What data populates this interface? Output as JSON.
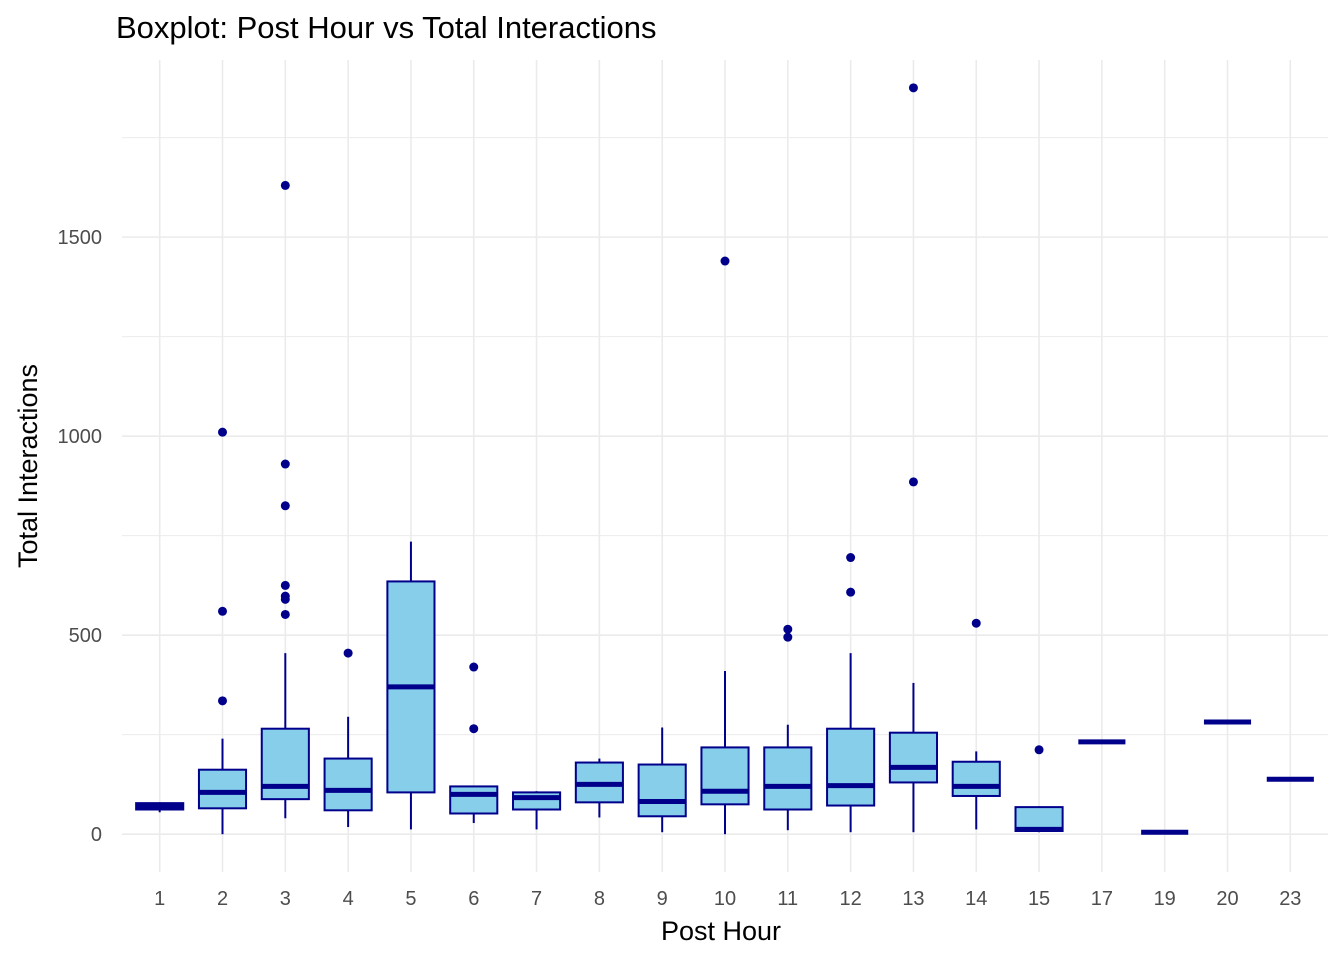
{
  "chart_data": {
    "type": "boxplot",
    "title": "Boxplot: Post Hour vs Total Interactions",
    "xlabel": "Post Hour",
    "ylabel": "Total Interactions",
    "ylim": [
      -95,
      1945
    ],
    "yticks": [
      0,
      500,
      1000,
      1500
    ],
    "grid": true,
    "colors": {
      "box_fill": "#87CEEB",
      "box_outline": "#00008B",
      "median": "#00008B",
      "outlier": "#00008B",
      "grid": "#EBEBEB"
    },
    "categories": [
      "1",
      "2",
      "3",
      "4",
      "5",
      "6",
      "7",
      "8",
      "9",
      "10",
      "11",
      "12",
      "13",
      "14",
      "15",
      "17",
      "19",
      "20",
      "23"
    ],
    "boxes": [
      {
        "category": "1",
        "whisker_low": 55,
        "q1": 62,
        "median": 70,
        "q3": 78,
        "whisker_high": 80,
        "outliers": []
      },
      {
        "category": "2",
        "whisker_low": 0,
        "q1": 65,
        "median": 105,
        "q3": 162,
        "whisker_high": 240,
        "outliers": [
          335,
          560,
          1010
        ]
      },
      {
        "category": "3",
        "whisker_low": 40,
        "q1": 88,
        "median": 120,
        "q3": 265,
        "whisker_high": 455,
        "outliers": [
          552,
          590,
          598,
          625,
          825,
          930,
          1630
        ]
      },
      {
        "category": "4",
        "whisker_low": 18,
        "q1": 60,
        "median": 110,
        "q3": 190,
        "whisker_high": 295,
        "outliers": [
          455
        ]
      },
      {
        "category": "5",
        "whisker_low": 12,
        "q1": 105,
        "median": 370,
        "q3": 635,
        "whisker_high": 735,
        "outliers": []
      },
      {
        "category": "6",
        "whisker_low": 28,
        "q1": 52,
        "median": 100,
        "q3": 120,
        "whisker_high": 120,
        "outliers": [
          265,
          420
        ]
      },
      {
        "category": "7",
        "whisker_low": 12,
        "q1": 62,
        "median": 92,
        "q3": 105,
        "whisker_high": 108,
        "outliers": []
      },
      {
        "category": "8",
        "whisker_low": 42,
        "q1": 80,
        "median": 125,
        "q3": 180,
        "whisker_high": 190,
        "outliers": []
      },
      {
        "category": "9",
        "whisker_low": 5,
        "q1": 45,
        "median": 82,
        "q3": 175,
        "whisker_high": 268,
        "outliers": []
      },
      {
        "category": "10",
        "whisker_low": 0,
        "q1": 75,
        "median": 108,
        "q3": 218,
        "whisker_high": 410,
        "outliers": [
          1440
        ]
      },
      {
        "category": "11",
        "whisker_low": 10,
        "q1": 62,
        "median": 120,
        "q3": 218,
        "whisker_high": 275,
        "outliers": [
          495,
          515
        ]
      },
      {
        "category": "12",
        "whisker_low": 5,
        "q1": 72,
        "median": 122,
        "q3": 265,
        "whisker_high": 455,
        "outliers": [
          608,
          695
        ]
      },
      {
        "category": "13",
        "whisker_low": 5,
        "q1": 130,
        "median": 168,
        "q3": 255,
        "whisker_high": 380,
        "outliers": [
          885,
          1875
        ]
      },
      {
        "category": "14",
        "whisker_low": 12,
        "q1": 96,
        "median": 120,
        "q3": 182,
        "whisker_high": 208,
        "outliers": [
          530
        ]
      },
      {
        "category": "15",
        "whisker_low": 5,
        "q1": 8,
        "median": 12,
        "q3": 68,
        "whisker_high": 70,
        "outliers": [
          212
        ]
      },
      {
        "category": "17",
        "whisker_low": 232,
        "q1": 232,
        "median": 232,
        "q3": 232,
        "whisker_high": 232,
        "outliers": []
      },
      {
        "category": "19",
        "whisker_low": 5,
        "q1": 5,
        "median": 5,
        "q3": 5,
        "whisker_high": 5,
        "outliers": []
      },
      {
        "category": "20",
        "whisker_low": 282,
        "q1": 282,
        "median": 282,
        "q3": 282,
        "whisker_high": 282,
        "outliers": []
      },
      {
        "category": "23",
        "whisker_low": 138,
        "q1": 138,
        "median": 138,
        "q3": 138,
        "whisker_high": 138,
        "outliers": []
      }
    ]
  }
}
